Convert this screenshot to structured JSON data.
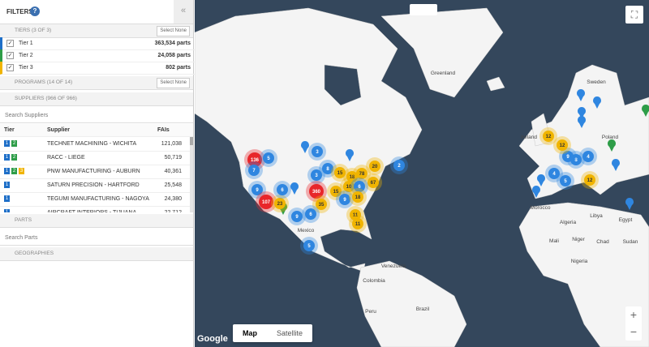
{
  "header": {
    "title": "FILTERS",
    "help": "?",
    "collapse": "«"
  },
  "tiers": {
    "title": "TIERS",
    "count": "(3 OF 3)",
    "action": "Select None",
    "items": [
      {
        "label": "Tier 1",
        "parts": "363,534 parts",
        "color": "#1e6fc8"
      },
      {
        "label": "Tier 2",
        "parts": "24,058 parts",
        "color": "#2e9d48"
      },
      {
        "label": "Tier 3",
        "parts": "802 parts",
        "color": "#f0b400"
      }
    ]
  },
  "programs": {
    "title": "PROGRAMS",
    "count": "(14 OF 14)",
    "action": "Select None"
  },
  "suppliers": {
    "title": "SUPPLIERS",
    "count": "(966 OF 966)",
    "search": "Search Suppliers",
    "columns": [
      "Tier",
      "Supplier",
      "FAIs"
    ],
    "rows": [
      {
        "tiers": [
          1,
          2
        ],
        "name": "TECHNET MACHINING - WICHITA",
        "fais": "121,038"
      },
      {
        "tiers": [
          1,
          2
        ],
        "name": "RACC - LIEGE",
        "fais": "50,719"
      },
      {
        "tiers": [
          1,
          2,
          3
        ],
        "name": "PNW MANUFACTURING - AUBURN",
        "fais": "40,361"
      },
      {
        "tiers": [
          1
        ],
        "name": "SATURN PRECISION - HARTFORD",
        "fais": "25,548"
      },
      {
        "tiers": [
          1
        ],
        "name": "TEGUMI MANUFACTURING - NAGOYA",
        "fais": "24,380"
      },
      {
        "tiers": [
          1
        ],
        "name": "AIRCRAFT INTERIORS - TIJUANA",
        "fais": "22,712"
      }
    ]
  },
  "parts": {
    "title": "PARTS",
    "search": "Search Parts"
  },
  "geographies": {
    "title": "GEOGRAPHIES"
  },
  "map": {
    "buttons": [
      "Map",
      "Satellite"
    ],
    "attribution": "Google",
    "zoom_in": "+",
    "zoom_out": "−",
    "places": [
      "Greenland",
      "Sweden",
      "Poland",
      "Ireland",
      "Morocco",
      "Algeria",
      "Libya",
      "Egypt",
      "Mali",
      "Niger",
      "Chad",
      "Sudan",
      "Nigeria",
      "Mexico",
      "Venezuela",
      "Colombia",
      "Brazil",
      "Peru"
    ],
    "clusters": [
      {
        "label": "136",
        "color": "#e8262a"
      },
      {
        "label": "7",
        "color": "#2f86e0"
      },
      {
        "label": "5",
        "color": "#2f86e0"
      },
      {
        "label": "9",
        "color": "#2f86e0"
      },
      {
        "label": "107",
        "color": "#e8262a"
      },
      {
        "label": "23",
        "color": "#f0b400"
      },
      {
        "label": "6",
        "color": "#2f86e0"
      },
      {
        "label": "3",
        "color": "#2f86e0"
      },
      {
        "label": "8",
        "color": "#2f86e0"
      },
      {
        "label": "3",
        "color": "#2f86e0"
      },
      {
        "label": "360",
        "color": "#e8262a"
      },
      {
        "label": "15",
        "color": "#f0b400"
      },
      {
        "label": "18",
        "color": "#f0b400"
      },
      {
        "label": "78",
        "color": "#f0b400"
      },
      {
        "label": "20",
        "color": "#f0b400"
      },
      {
        "label": "67",
        "color": "#f0b400"
      },
      {
        "label": "10",
        "color": "#f0b400"
      },
      {
        "label": "15",
        "color": "#f0b400"
      },
      {
        "label": "6",
        "color": "#2f86e0"
      },
      {
        "label": "35",
        "color": "#f0b400"
      },
      {
        "label": "9",
        "color": "#2f86e0"
      },
      {
        "label": "18",
        "color": "#f0b400"
      },
      {
        "label": "11",
        "color": "#f0b400"
      },
      {
        "label": "11",
        "color": "#f0b400"
      },
      {
        "label": "6",
        "color": "#2f86e0"
      },
      {
        "label": "9",
        "color": "#2f86e0"
      },
      {
        "label": "2",
        "color": "#2f86e0"
      },
      {
        "label": "5",
        "color": "#2f86e0"
      },
      {
        "label": "12",
        "color": "#f0b400"
      },
      {
        "label": "12",
        "color": "#f0b400"
      },
      {
        "label": "4",
        "color": "#2f86e0"
      },
      {
        "label": "8",
        "color": "#2f86e0"
      },
      {
        "label": "4",
        "color": "#2f86e0"
      },
      {
        "label": "5",
        "color": "#2f86e0"
      },
      {
        "label": "9",
        "color": "#2f86e0"
      },
      {
        "label": "12",
        "color": "#f0b400"
      }
    ]
  }
}
